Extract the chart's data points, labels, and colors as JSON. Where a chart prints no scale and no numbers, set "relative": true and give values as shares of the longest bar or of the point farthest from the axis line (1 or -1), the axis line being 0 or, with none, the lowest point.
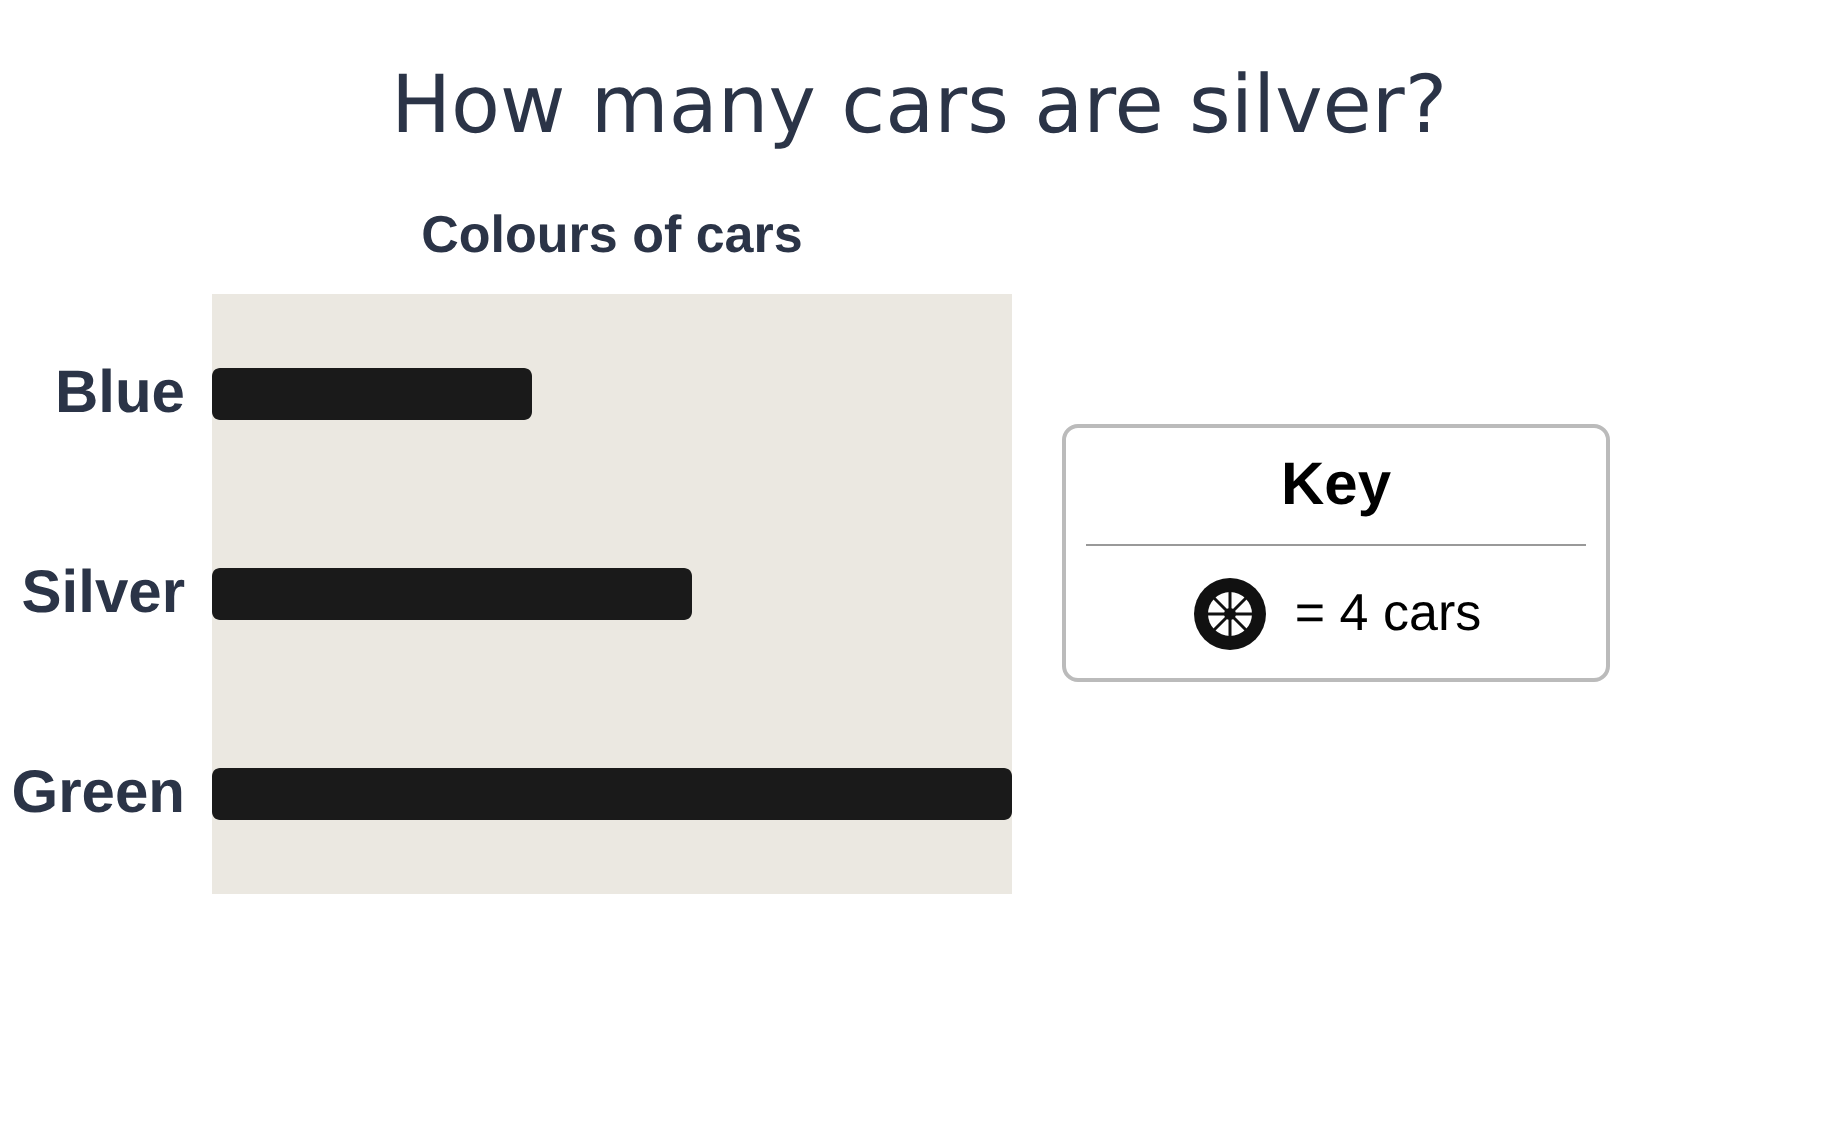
{
  "chart_data": {
    "type": "bar",
    "orientation": "horizontal",
    "title": "How many cars are silver?",
    "subtitle": "Colours of cars",
    "categories": [
      "Blue",
      "Silver",
      "Green"
    ],
    "values": [
      0.4,
      0.6,
      1
    ],
    "color": "#1a1a1a",
    "relative": true,
    "annotations": [
      "Key",
      "= 4 cars"
    ]
  }
}
